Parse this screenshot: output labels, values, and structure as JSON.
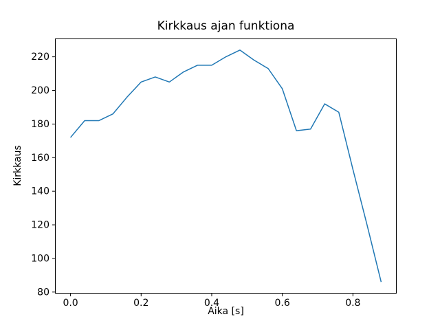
{
  "chart_data": {
    "type": "line",
    "title": "Kirkkaus ajan funktiona",
    "xlabel": "Aika [s]",
    "ylabel": "Kirkkaus",
    "x": [
      0.0,
      0.04,
      0.08,
      0.12,
      0.16,
      0.2,
      0.24,
      0.28,
      0.32,
      0.36,
      0.4,
      0.44,
      0.48,
      0.52,
      0.56,
      0.6,
      0.64,
      0.68,
      0.72,
      0.76,
      0.8,
      0.84,
      0.88
    ],
    "y": [
      172,
      182,
      182,
      186,
      196,
      205,
      208,
      205,
      211,
      215,
      215,
      220,
      224,
      218,
      213,
      201,
      176,
      177,
      192,
      187,
      153,
      120,
      86
    ],
    "xlim": [
      -0.044,
      0.924
    ],
    "ylim": [
      79.1,
      230.9
    ],
    "xtick_values": [
      0.0,
      0.2,
      0.4,
      0.6,
      0.8
    ],
    "xtick_labels": [
      "0.0",
      "0.2",
      "0.4",
      "0.6",
      "0.8"
    ],
    "ytick_values": [
      80,
      100,
      120,
      140,
      160,
      180,
      200,
      220
    ],
    "ytick_labels": [
      "80",
      "100",
      "120",
      "140",
      "160",
      "180",
      "200",
      "220"
    ],
    "line_color": "#1f77b4",
    "axes_color": "#000000",
    "background": "#ffffff",
    "grid": false,
    "legend_position": "none"
  }
}
